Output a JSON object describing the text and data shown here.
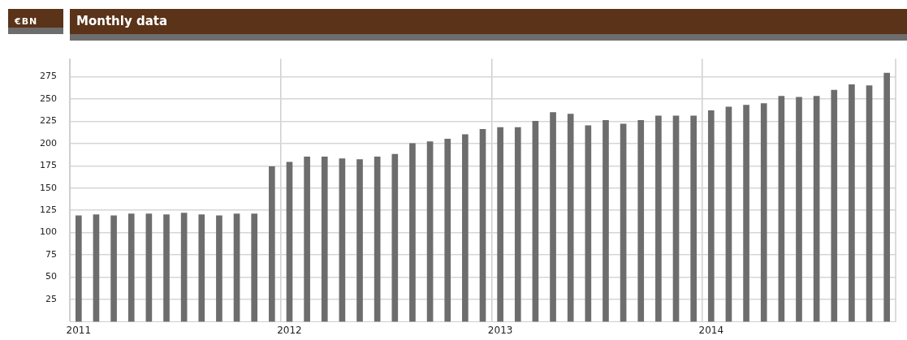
{
  "chart_data": {
    "type": "bar",
    "title": "Monthly data",
    "ylabel": "€BN",
    "categories": [
      "2011",
      null,
      null,
      null,
      null,
      null,
      null,
      null,
      null,
      null,
      null,
      null,
      "2012",
      null,
      null,
      null,
      null,
      null,
      null,
      null,
      null,
      null,
      null,
      null,
      "2013",
      null,
      null,
      null,
      null,
      null,
      null,
      null,
      null,
      null,
      null,
      null,
      "2014",
      null,
      null,
      null,
      null,
      null,
      null,
      null,
      null,
      null,
      null
    ],
    "series": [
      {
        "color": "#6d6d6d",
        "values": [
          119,
          120,
          119,
          121,
          121,
          120,
          122,
          120,
          119,
          121,
          121,
          174,
          179,
          185,
          185,
          183,
          182,
          185,
          188,
          200,
          202,
          205,
          210,
          216,
          218,
          218,
          225,
          235,
          233,
          220,
          226,
          222,
          226,
          231,
          231,
          231,
          237,
          241,
          243,
          245,
          253,
          252,
          253,
          260,
          266,
          265,
          279
        ]
      }
    ],
    "ylim": [
      0,
      295
    ],
    "yticks": [
      25,
      50,
      75,
      100,
      125,
      150,
      175,
      200,
      225,
      250,
      275
    ],
    "grid": true,
    "legend": false
  }
}
